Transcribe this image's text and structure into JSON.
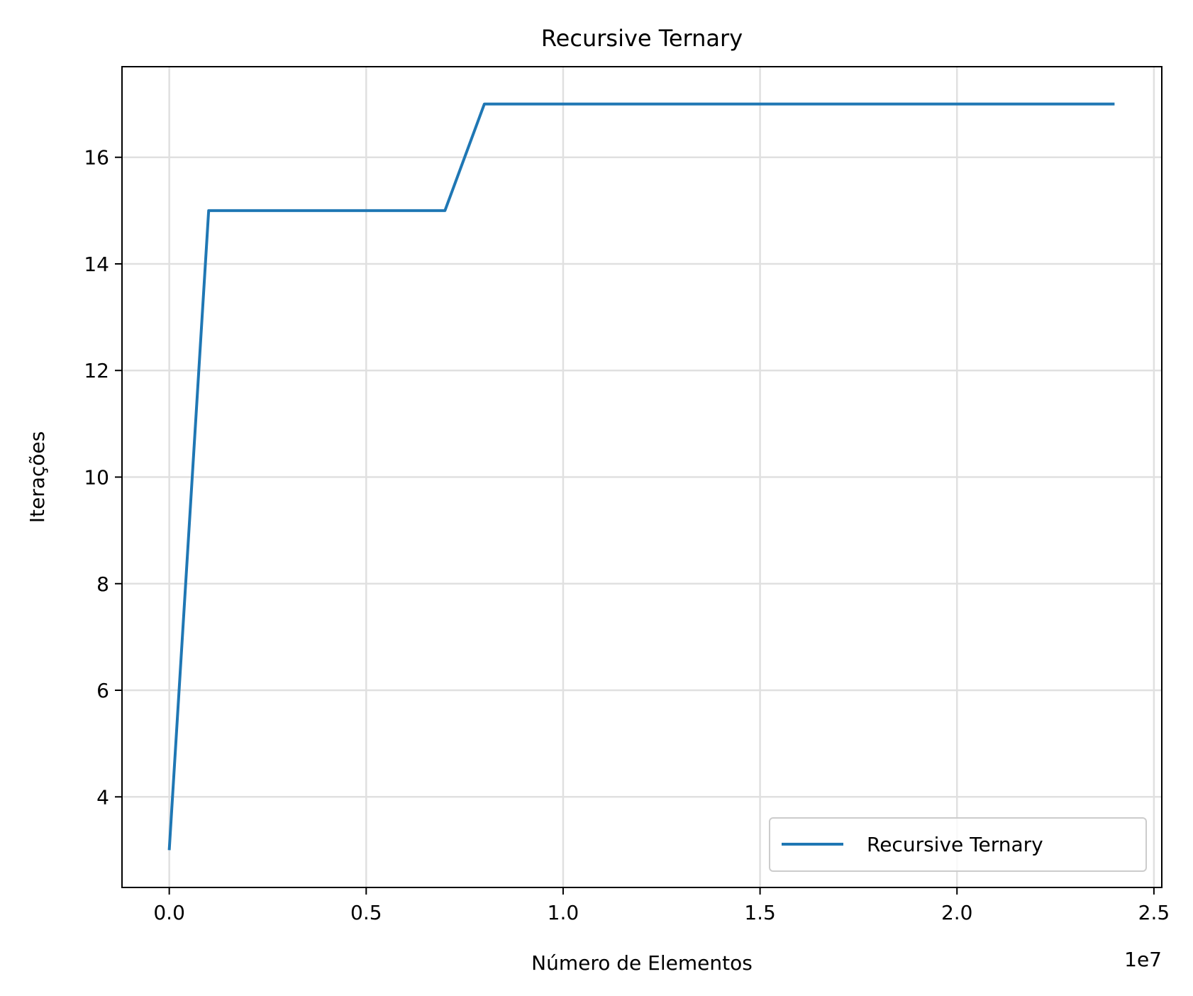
{
  "chart_data": {
    "type": "line",
    "title": "Recursive Ternary",
    "xlabel": "Número de Elementos",
    "ylabel": "Iterações",
    "x_offset_label": "1e7",
    "xlim": [
      -0.12,
      2.52
    ],
    "ylim": [
      2.3,
      17.7
    ],
    "xticks": [
      0.0,
      0.5,
      1.0,
      1.5,
      2.0,
      2.5
    ],
    "xtick_labels": [
      "0.0",
      "0.5",
      "1.0",
      "1.5",
      "2.0",
      "2.5"
    ],
    "yticks": [
      4,
      6,
      8,
      10,
      12,
      14,
      16
    ],
    "ytick_labels": [
      "4",
      "6",
      "8",
      "10",
      "12",
      "14",
      "16"
    ],
    "grid": true,
    "legend_position": "lower right",
    "series": [
      {
        "name": "Recursive Ternary",
        "color": "#1f77b4",
        "x": [
          0.0,
          0.1,
          0.2,
          0.3,
          0.4,
          0.5,
          0.6,
          0.7,
          0.8,
          0.9,
          1.0,
          1.1,
          1.2,
          1.3,
          1.4,
          1.5,
          1.6,
          1.7,
          1.8,
          1.9,
          2.0,
          2.1,
          2.2,
          2.3,
          2.4
        ],
        "y": [
          3,
          15,
          15,
          15,
          15,
          15,
          15,
          15,
          17,
          17,
          17,
          17,
          17,
          17,
          17,
          17,
          17,
          17,
          17,
          17,
          17,
          17,
          17,
          17,
          17
        ]
      }
    ]
  }
}
